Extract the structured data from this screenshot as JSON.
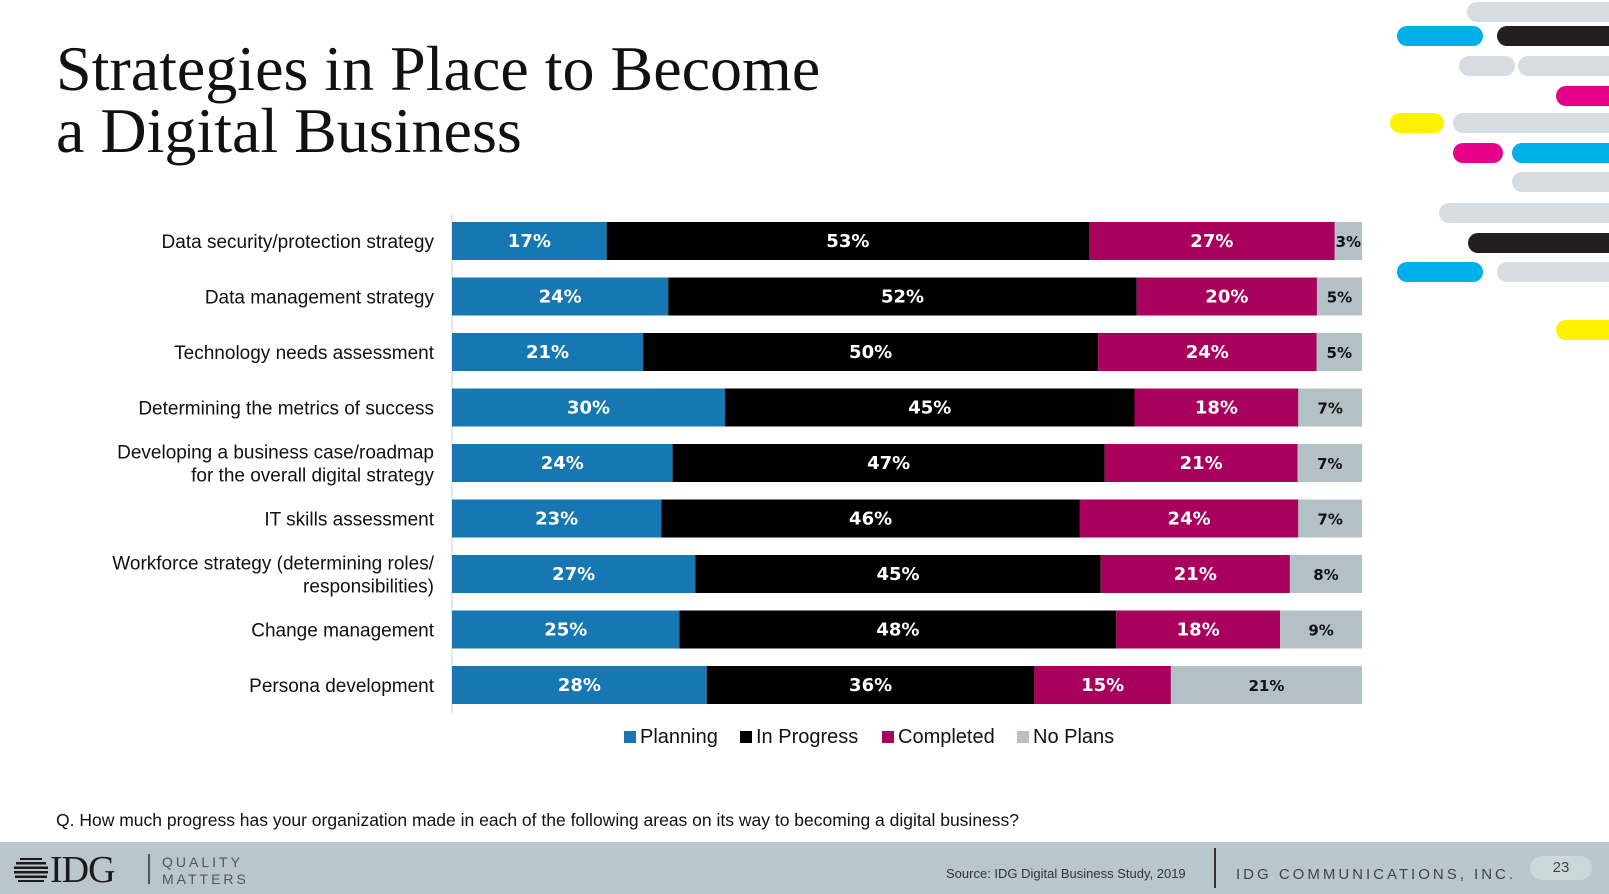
{
  "title": {
    "line1": "Strategies in Place to Become",
    "line2": "a Digital Business"
  },
  "colors": {
    "planning": "#1677b3",
    "in_progress": "#000000",
    "completed": "#a8005c",
    "no_plans": "#b3c0c6",
    "deco_cyan": "#00aee8",
    "deco_black": "#231f20",
    "deco_gray": "#d6dde2",
    "deco_magenta": "#e6008a",
    "deco_yellow": "#fff200",
    "footer": "#b9c6cc"
  },
  "chart_data": {
    "type": "bar",
    "orientation": "horizontal",
    "stacked": true,
    "categories": [
      "Data security/protection strategy",
      "Data management strategy",
      "Technology needs assessment",
      "Determining the metrics of success",
      "Developing a business case/roadmap\nfor the overall digital strategy",
      "IT skills assessment",
      "Workforce strategy (determining roles/\nresponsibilities)",
      "Change management",
      "Persona development"
    ],
    "series": [
      {
        "name": "Planning",
        "values": [
          17,
          24,
          21,
          30,
          24,
          23,
          27,
          25,
          28
        ]
      },
      {
        "name": "In Progress",
        "values": [
          53,
          52,
          50,
          45,
          47,
          46,
          45,
          48,
          36
        ]
      },
      {
        "name": "Completed",
        "values": [
          27,
          20,
          24,
          18,
          21,
          24,
          21,
          18,
          15
        ]
      },
      {
        "name": "No Plans",
        "values": [
          3,
          5,
          5,
          7,
          7,
          7,
          8,
          9,
          21
        ]
      }
    ],
    "data_label_suffix": "%",
    "legend_position": "bottom"
  },
  "legend": [
    "Planning",
    "In Progress",
    "Completed",
    "No Plans"
  ],
  "question": "Q.  How much progress has your organization made in each of the following areas on its way to becoming a digital business?",
  "footer": {
    "logo_text": "IDG",
    "tagline_line1": "QUALITY",
    "tagline_line2": "MATTERS",
    "source": "Source: IDG Digital Business Study, 2019",
    "company": "IDG COMMUNICATIONS, INC.",
    "page_number": "23"
  }
}
